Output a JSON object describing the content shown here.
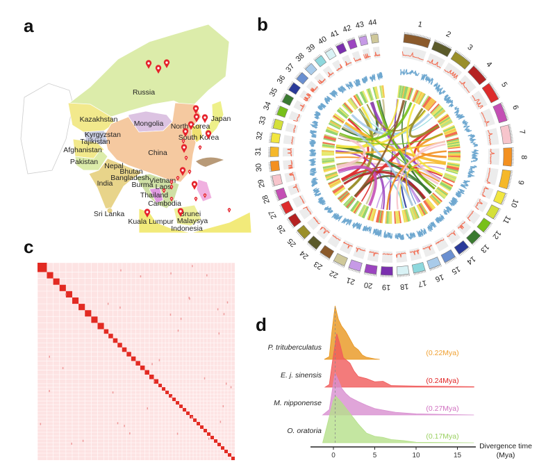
{
  "panels": {
    "a": "a",
    "b": "b",
    "c": "c",
    "d": "d"
  },
  "map": {
    "countries": [
      "Russia",
      "Kazakhstan",
      "Mongolia",
      "Japan",
      "North Korea",
      "South Korea",
      "Kyrgyzstan",
      "Tajikistan",
      "Afghanistan",
      "China",
      "Pakistan",
      "Nepal",
      "Bhutan",
      "Bangladesh",
      "India",
      "Vietnam",
      "Burma",
      "Laos",
      "Thailand",
      "Cambodia",
      "Sri Lanka",
      "Kuala Lumpur",
      "Brunei",
      "Malaysya",
      "Indonesia"
    ],
    "marker_icon": "map-pin-icon",
    "marker_color": "#e5222b"
  },
  "circos": {
    "chromosomes": [
      "1",
      "2",
      "3",
      "4",
      "5",
      "6",
      "7",
      "8",
      "9",
      "10",
      "11",
      "12",
      "13",
      "14",
      "15",
      "16",
      "17",
      "18",
      "19",
      "20",
      "21",
      "22",
      "23",
      "24",
      "25",
      "26",
      "27",
      "28",
      "29",
      "30",
      "31",
      "32",
      "33",
      "34",
      "35",
      "36",
      "37",
      "38",
      "39",
      "40",
      "41",
      "42",
      "43",
      "44"
    ],
    "palette": [
      "#8b5a2b",
      "#5b5a2a",
      "#9a8f2a",
      "#b52222",
      "#dd2c2c",
      "#c44fb5",
      "#f7c5cc",
      "#f39020",
      "#f5b82a",
      "#f2e640",
      "#d4e03a",
      "#78c01a",
      "#3a7a30",
      "#2a3a9a",
      "#6a8fd0",
      "#a9cbea",
      "#8ed8dd",
      "#d9f2f5",
      "#7a2fae",
      "#9c45c0",
      "#c69ae6",
      "#cfc89a"
    ],
    "density_line_color": "#f26a4f",
    "gc_line_color": "#6fa8d0",
    "heat_colors": [
      "#8fd16a",
      "#f2e05a",
      "#f5c04a",
      "#f2694a",
      "#b9e07a",
      "#e6e86a"
    ]
  },
  "chart_data": {
    "type": "area",
    "subtype": "ridgeline",
    "xlabel": "Divergence time\n(Mya)",
    "xlabel_lines": [
      "Divergence time",
      "(Mya)"
    ],
    "xlim": [
      -2.8,
      17.5
    ],
    "xticks": [
      0,
      5,
      10,
      15
    ],
    "xtick_labels": [
      "0",
      "5",
      "10",
      "15"
    ],
    "grid": false,
    "series": [
      {
        "name": "P. trituberculatus",
        "median_label": "(0.22Mya)",
        "median": 0.22,
        "color": "#e8961e",
        "label_color": "#f0a030",
        "points": [
          [
            -1.1,
            0
          ],
          [
            -0.5,
            0.05
          ],
          [
            -0.2,
            0.5
          ],
          [
            0.2,
            1
          ],
          [
            0.6,
            0.75
          ],
          [
            1,
            0.62
          ],
          [
            1.5,
            0.52
          ],
          [
            2,
            0.38
          ],
          [
            2.5,
            0.24
          ],
          [
            3,
            0.18
          ],
          [
            3.5,
            0.08
          ],
          [
            4,
            0.04
          ],
          [
            5,
            0.01
          ],
          [
            5.6,
            0
          ]
        ]
      },
      {
        "name": "E. j. sinensis",
        "median_label": "(0.24Mya)",
        "median": 0.24,
        "color": "#f05a5a",
        "label_color": "#e02020",
        "points": [
          [
            -1,
            0
          ],
          [
            -0.5,
            0.05
          ],
          [
            -0.1,
            0.5
          ],
          [
            0.4,
            1
          ],
          [
            0.8,
            0.8
          ],
          [
            1.2,
            0.55
          ],
          [
            2,
            0.45
          ],
          [
            2.5,
            0.3
          ],
          [
            3,
            0.2
          ],
          [
            4,
            0.16
          ],
          [
            5,
            0.1
          ],
          [
            6,
            0.11
          ],
          [
            7,
            0.03
          ],
          [
            10,
            0.02
          ],
          [
            17,
            0.01
          ]
        ]
      },
      {
        "name": "M. nipponense",
        "median_label": "(0.27Mya)",
        "median": 0.27,
        "color": "#d88fd0",
        "label_color": "#d070c0",
        "points": [
          [
            -1.3,
            0
          ],
          [
            -0.5,
            0.1
          ],
          [
            0,
            0.6
          ],
          [
            0.2,
            0.78
          ],
          [
            0.6,
            0.65
          ],
          [
            1,
            0.5
          ],
          [
            1.5,
            0.4
          ],
          [
            2,
            0.33
          ],
          [
            3,
            0.25
          ],
          [
            4,
            0.18
          ],
          [
            5,
            0.12
          ],
          [
            6,
            0.09
          ],
          [
            7.5,
            0.05
          ],
          [
            10,
            0.02
          ],
          [
            17,
            0
          ]
        ]
      },
      {
        "name": "O. oratoria",
        "median_label": "(0.17Mya)",
        "median": 0.17,
        "color": "#b5e08a",
        "label_color": "#9ad060",
        "points": [
          [
            -1.3,
            0
          ],
          [
            -0.8,
            0.3
          ],
          [
            0,
            0.8
          ],
          [
            0.3,
            0.87
          ],
          [
            1,
            0.75
          ],
          [
            2,
            0.55
          ],
          [
            3,
            0.35
          ],
          [
            4,
            0.18
          ],
          [
            5,
            0.12
          ],
          [
            6,
            0.1
          ],
          [
            7,
            0.06
          ],
          [
            8.5,
            0.04
          ],
          [
            10,
            0.01
          ],
          [
            17,
            0
          ]
        ]
      }
    ]
  }
}
